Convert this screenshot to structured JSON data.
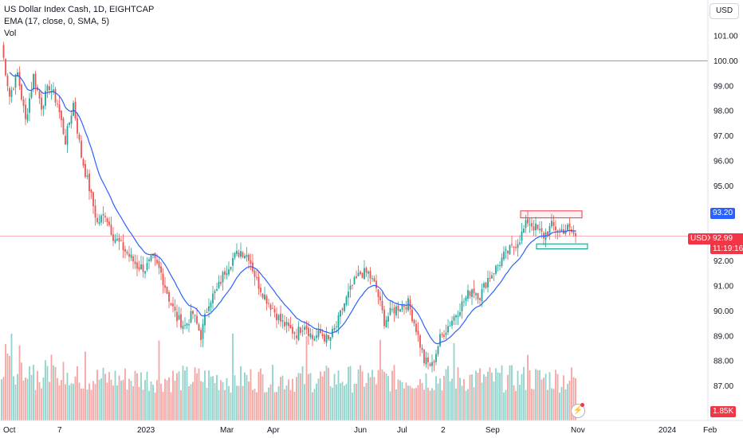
{
  "legend": {
    "title": "US Dollar Index Cash, 1D, EIGHTCAP",
    "ema": "EMA (17, close, 0, SMA, 5)",
    "vol": "Vol"
  },
  "currency_button": "USD",
  "price_tags": {
    "ema_value": "93.20",
    "symbol": "USDX",
    "last_price": "92.99",
    "countdown": "11:19:16",
    "volume": "1.85K"
  },
  "colors": {
    "up": "#26a69a",
    "down": "#ef5350",
    "vol_up": "#8fd3cc",
    "vol_down": "#f5a6a4",
    "ema": "#2962ff",
    "price_line": "#f23645",
    "horizontal_line": "#9598a1",
    "box_red": "#f23645",
    "box_green": "#089981",
    "ema_tag_bg": "#2962ff",
    "price_tag_bg": "#f23645"
  },
  "chart_data": {
    "type": "candlestick",
    "y_ticks": [
      "101.00",
      "100.00",
      "99.00",
      "98.00",
      "97.00",
      "96.00",
      "95.00",
      "94.00",
      "92.00",
      "91.00",
      "90.00",
      "89.00",
      "88.00",
      "87.00"
    ],
    "x_ticks": [
      "Oct",
      "7",
      "2023",
      "Mar",
      "Apr",
      "Jun",
      "Jul",
      "2",
      "Sep",
      "Nov",
      "2024",
      "Feb"
    ],
    "ylim": [
      86.2,
      101.7
    ],
    "horizontal_line": 100.0,
    "last_price": 92.99,
    "ema_last": 93.2,
    "resistance_zone": [
      93.72,
      94.0
    ],
    "support_zone": [
      92.48,
      92.68
    ],
    "price_path_anchors": [
      [
        0,
        100.6
      ],
      [
        4,
        98.6
      ],
      [
        8,
        99.5
      ],
      [
        12,
        97.6
      ],
      [
        16,
        99.4
      ],
      [
        20,
        98.2
      ],
      [
        24,
        99.0
      ],
      [
        28,
        98.3
      ],
      [
        32,
        96.8
      ],
      [
        36,
        98.3
      ],
      [
        40,
        96.2
      ],
      [
        44,
        94.9
      ],
      [
        48,
        93.5
      ],
      [
        52,
        93.9
      ],
      [
        56,
        93.0
      ],
      [
        60,
        92.6
      ],
      [
        64,
        92.2
      ],
      [
        68,
        91.8
      ],
      [
        72,
        91.7
      ],
      [
        76,
        92.1
      ],
      [
        80,
        91.5
      ],
      [
        84,
        90.5
      ],
      [
        88,
        89.7
      ],
      [
        92,
        89.4
      ],
      [
        96,
        89.9
      ],
      [
        100,
        89.0
      ],
      [
        104,
        90.4
      ],
      [
        108,
        90.8
      ],
      [
        112,
        91.6
      ],
      [
        116,
        92.1
      ],
      [
        120,
        92.4
      ],
      [
        124,
        92.2
      ],
      [
        128,
        91.2
      ],
      [
        132,
        90.6
      ],
      [
        136,
        90.1
      ],
      [
        140,
        89.6
      ],
      [
        144,
        89.3
      ],
      [
        148,
        89.1
      ],
      [
        152,
        89.5
      ],
      [
        156,
        88.9
      ],
      [
        160,
        89.1
      ],
      [
        164,
        88.8
      ],
      [
        168,
        89.4
      ],
      [
        172,
        90.3
      ],
      [
        176,
        91.0
      ],
      [
        180,
        91.5
      ],
      [
        184,
        91.5
      ],
      [
        188,
        90.9
      ],
      [
        192,
        89.6
      ],
      [
        196,
        90.0
      ],
      [
        200,
        90.2
      ],
      [
        204,
        90.3
      ],
      [
        208,
        89.3
      ],
      [
        212,
        88.0
      ],
      [
        216,
        87.8
      ],
      [
        220,
        88.9
      ],
      [
        224,
        89.4
      ],
      [
        228,
        89.9
      ],
      [
        232,
        90.4
      ],
      [
        236,
        90.9
      ],
      [
        240,
        90.6
      ],
      [
        244,
        91.3
      ],
      [
        248,
        91.7
      ],
      [
        252,
        92.2
      ],
      [
        256,
        92.5
      ],
      [
        260,
        92.9
      ],
      [
        264,
        93.6
      ],
      [
        268,
        93.3
      ],
      [
        272,
        93.0
      ],
      [
        276,
        93.4
      ],
      [
        280,
        93.2
      ],
      [
        284,
        93.3
      ],
      [
        288,
        93.0
      ]
    ]
  }
}
